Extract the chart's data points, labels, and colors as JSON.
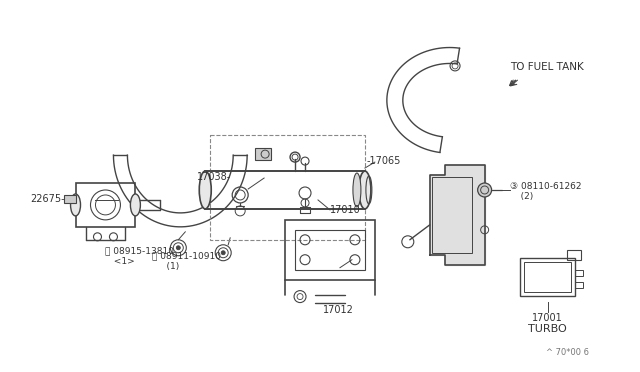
{
  "bg_color": "#ffffff",
  "line_color": "#444444",
  "text_color": "#333333",
  "light_line": "#666666"
}
